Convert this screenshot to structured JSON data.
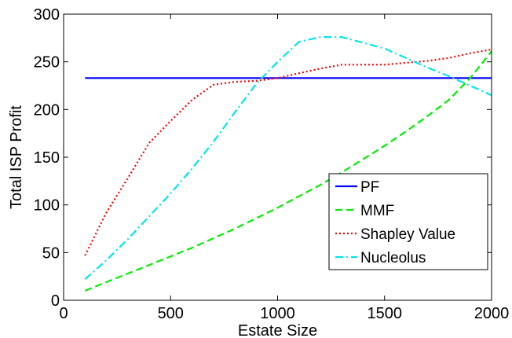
{
  "chart_data": {
    "type": "line",
    "xlabel": "Estate Size",
    "ylabel": "Total ISP Profit",
    "xlim": [
      0,
      2000
    ],
    "ylim": [
      0,
      300
    ],
    "xticks": [
      0,
      500,
      1000,
      1500,
      2000
    ],
    "yticks": [
      0,
      50,
      100,
      150,
      200,
      250,
      300
    ],
    "grid": false,
    "legend_position": "lower-right",
    "series": [
      {
        "name": "PF",
        "color": "#0000ff",
        "style": "solid",
        "x": [
          100,
          2000
        ],
        "y": [
          233,
          233
        ]
      },
      {
        "name": "MMF",
        "color": "#00ee00",
        "style": "dashed",
        "x": [
          100,
          200,
          300,
          400,
          500,
          600,
          700,
          800,
          900,
          1000,
          1100,
          1200,
          1300,
          1400,
          1500,
          1600,
          1700,
          1800,
          1900,
          2000
        ],
        "y": [
          10,
          19,
          28,
          37,
          46,
          55,
          65,
          75,
          86,
          97,
          109,
          121,
          134,
          148,
          162,
          177,
          193,
          210,
          233,
          261
        ]
      },
      {
        "name": "Shapley Value",
        "color": "#ff0000",
        "style": "dotted",
        "x": [
          100,
          200,
          300,
          400,
          500,
          600,
          700,
          800,
          900,
          1000,
          1100,
          1200,
          1300,
          1400,
          1500,
          1600,
          1700,
          1800,
          1900,
          2000
        ],
        "y": [
          47,
          92,
          128,
          165,
          188,
          210,
          226,
          229,
          230,
          233,
          238,
          243,
          247,
          247,
          247,
          249,
          251,
          254,
          259,
          263
        ]
      },
      {
        "name": "Nucleolus",
        "color": "#00e5ee",
        "style": "dashdot",
        "x": [
          100,
          200,
          300,
          400,
          500,
          600,
          700,
          800,
          900,
          1000,
          1100,
          1200,
          1300,
          1400,
          1500,
          1600,
          1700,
          1800,
          1900,
          2000
        ],
        "y": [
          22,
          42,
          64,
          88,
          112,
          138,
          166,
          197,
          227,
          250,
          271,
          276,
          276,
          270,
          264,
          254,
          244,
          235,
          225,
          215
        ]
      }
    ]
  }
}
